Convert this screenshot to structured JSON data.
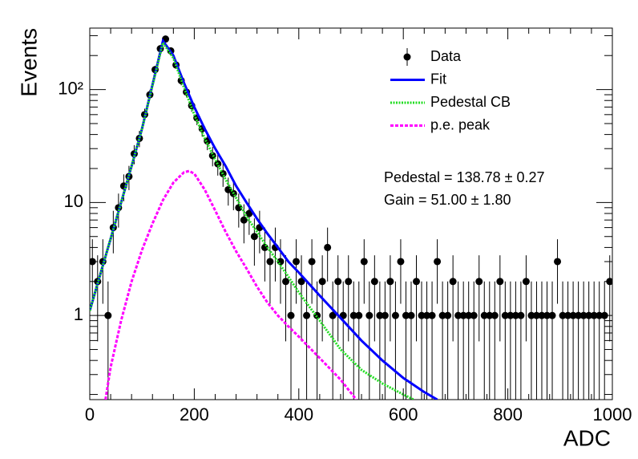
{
  "chart_data": {
    "type": "scatter",
    "log_y": true,
    "xlabel": "ADC",
    "ylabel": "Events",
    "xlim": [
      0,
      1000
    ],
    "xticks": [
      0,
      200,
      400,
      600,
      800,
      1000
    ],
    "xminorticks": [
      40,
      80,
      120,
      160,
      240,
      280,
      320,
      360,
      440,
      480,
      520,
      560,
      640,
      680,
      720,
      760,
      840,
      880,
      920,
      960
    ],
    "ylim": [
      0.18,
      350
    ],
    "yticks": [
      1,
      10,
      {
        "value": 100,
        "label": "10²"
      }
    ],
    "yminorticks": [
      0.2,
      0.3,
      0.4,
      0.5,
      0.6,
      0.7,
      0.8,
      0.9,
      2,
      3,
      4,
      5,
      6,
      7,
      8,
      9,
      20,
      30,
      40,
      50,
      60,
      70,
      80,
      90,
      200,
      300
    ],
    "legend": "top-right",
    "annotations": [
      "Pedestal = 138.78 ± 0.27",
      "Gain = 51.00 ± 1.80"
    ],
    "series": [
      {
        "name": "Data",
        "color": "#000000",
        "style": "points",
        "x": [
          5,
          15,
          25,
          35,
          45,
          55,
          65,
          75,
          85,
          95,
          105,
          115,
          125,
          135,
          145,
          155,
          165,
          175,
          185,
          195,
          205,
          215,
          225,
          235,
          245,
          255,
          265,
          275,
          285,
          295,
          305,
          315,
          325,
          335,
          345,
          355,
          365,
          375,
          385,
          395,
          405,
          415,
          425,
          435,
          445,
          455,
          465,
          475,
          485,
          495,
          505,
          515,
          525,
          535,
          545,
          555,
          565,
          575,
          585,
          595,
          605,
          615,
          625,
          635,
          645,
          655,
          665,
          675,
          685,
          695,
          705,
          715,
          725,
          735,
          745,
          755,
          765,
          775,
          785,
          795,
          805,
          815,
          825,
          835,
          845,
          855,
          865,
          875,
          885,
          895,
          905,
          915,
          925,
          935,
          945,
          955,
          965,
          975,
          985,
          995
        ],
        "values": [
          3,
          2,
          3,
          1,
          6,
          9,
          14,
          17,
          27,
          37,
          60,
          90,
          150,
          230,
          280,
          220,
          165,
          120,
          95,
          72,
          56,
          45,
          35,
          26,
          22,
          18,
          13,
          12,
          9,
          7,
          8,
          5,
          6,
          4,
          3,
          4,
          3,
          2,
          1,
          3,
          2,
          1,
          3,
          1,
          2,
          4,
          1,
          2,
          1,
          2,
          1,
          1,
          3,
          1,
          2,
          1,
          1,
          2,
          1,
          3,
          1,
          1,
          2,
          1,
          1,
          1,
          3,
          1,
          1,
          2,
          1,
          1,
          1,
          1,
          2,
          1,
          1,
          1,
          2,
          1,
          1,
          1,
          1,
          2,
          1,
          1,
          1,
          1,
          1,
          3,
          1,
          1,
          1,
          1,
          1,
          1,
          1,
          1,
          1,
          2
        ],
        "errors": [
          1.73,
          1.41,
          1.73,
          1,
          2.45,
          3,
          3.74,
          4.12,
          5.2,
          6.08,
          7.75,
          9.49,
          12.25,
          15.17,
          16.73,
          14.83,
          12.85,
          10.95,
          9.75,
          8.49,
          7.48,
          6.71,
          5.92,
          5.1,
          4.69,
          4.24,
          3.61,
          3.46,
          3,
          2.65,
          2.83,
          2.24,
          2.45,
          2,
          1.73,
          2,
          1.73,
          1.41,
          1,
          1.73,
          1.41,
          1,
          1.73,
          1,
          1.41,
          2,
          1,
          1.41,
          1,
          1.41,
          1,
          1,
          1.73,
          1,
          1.41,
          1,
          1,
          1.41,
          1,
          1.73,
          1,
          1,
          1.41,
          1,
          1,
          1,
          1.73,
          1,
          1,
          1.41,
          1,
          1,
          1,
          1,
          1.41,
          1,
          1,
          1,
          1.41,
          1,
          1,
          1,
          1,
          1.41,
          1,
          1,
          1,
          1,
          1,
          1.73,
          1,
          1,
          1,
          1,
          1,
          1,
          1,
          1,
          1,
          1.41
        ]
      },
      {
        "name": "Fit",
        "color": "#0000ff",
        "style": "solid",
        "x": [
          0,
          20,
          40,
          60,
          80,
          100,
          120,
          140,
          160,
          180,
          200,
          220,
          240,
          260,
          280,
          300,
          320,
          340,
          360,
          380,
          400,
          440,
          480,
          520,
          560,
          600,
          640,
          665
        ],
        "values": [
          1.1,
          2.3,
          4.8,
          10,
          21,
          45,
          110,
          270,
          200,
          115,
          70,
          45,
          30,
          21,
          14,
          10,
          7.2,
          5.3,
          4,
          3,
          2.4,
          1.5,
          0.95,
          0.6,
          0.4,
          0.28,
          0.21,
          0.18
        ]
      },
      {
        "name": "Pedestal CB",
        "color": "#22dd22",
        "style": "dotted",
        "x": [
          0,
          20,
          40,
          60,
          80,
          100,
          120,
          140,
          160,
          180,
          200,
          220,
          240,
          260,
          280,
          300,
          320,
          340,
          360,
          380,
          400,
          440,
          480,
          520,
          560,
          600,
          620
        ],
        "values": [
          1.1,
          2.3,
          4.8,
          10,
          21,
          45,
          108,
          260,
          190,
          105,
          60,
          37,
          24,
          16,
          11,
          7.5,
          5.5,
          4,
          3,
          2.2,
          1.6,
          0.9,
          0.5,
          0.33,
          0.25,
          0.2,
          0.18
        ]
      },
      {
        "name": "p.e. peak",
        "color": "#ff00ff",
        "style": "dashed",
        "x": [
          30,
          40,
          60,
          80,
          100,
          120,
          140,
          160,
          180,
          190,
          200,
          220,
          240,
          260,
          280,
          300,
          320,
          340,
          360,
          380,
          400,
          440,
          480,
          510
        ],
        "values": [
          0.18,
          0.35,
          0.9,
          2,
          3.8,
          6.5,
          10.5,
          15,
          18.5,
          19,
          18,
          13,
          8.5,
          5.5,
          3.7,
          2.6,
          1.8,
          1.3,
          1,
          0.8,
          0.65,
          0.42,
          0.27,
          0.18
        ]
      }
    ]
  }
}
